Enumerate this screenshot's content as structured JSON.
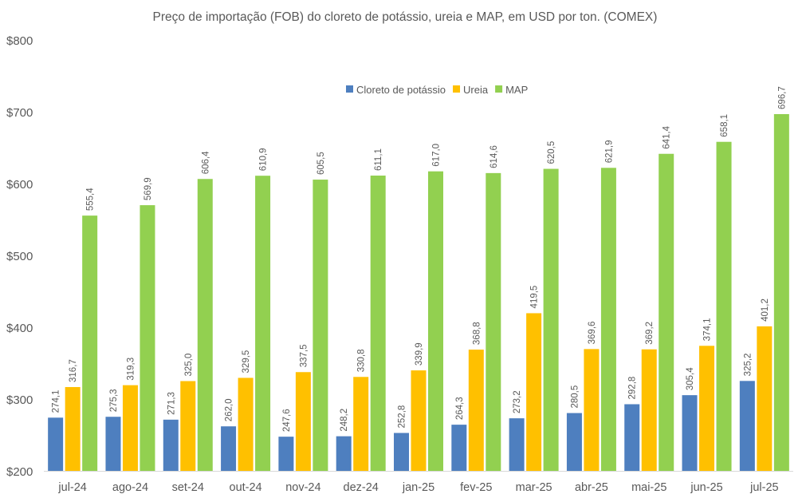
{
  "chart_data": {
    "type": "bar",
    "title": "Preço de importação (FOB) do cloreto de potássio, ureia e MAP, em USD por ton. (COMEX)",
    "xlabel": "",
    "ylabel": "",
    "ylim": [
      200,
      800
    ],
    "yticks": [
      200,
      300,
      400,
      500,
      600,
      700,
      800
    ],
    "ytick_labels": [
      "$200",
      "$300",
      "$400",
      "$500",
      "$600",
      "$700",
      "$800"
    ],
    "grid": false,
    "legend_position": "top-center",
    "categories": [
      "jul-24",
      "ago-24",
      "set-24",
      "out-24",
      "nov-24",
      "dez-24",
      "jan-25",
      "fev-25",
      "mar-25",
      "abr-25",
      "mai-25",
      "jun-25",
      "jul-25"
    ],
    "series": [
      {
        "name": "Cloreto de potássio",
        "color": "#4e7fbf",
        "values": [
          274.1,
          275.3,
          271.3,
          262.0,
          247.6,
          248.2,
          252.8,
          264.3,
          273.2,
          280.5,
          292.8,
          305.4,
          325.2
        ],
        "labels": [
          "274,1",
          "275,3",
          "271,3",
          "262,0",
          "247,6",
          "248,2",
          "252,8",
          "264,3",
          "273,2",
          "280,5",
          "292,8",
          "305,4",
          "325,2"
        ]
      },
      {
        "name": "Ureia",
        "color": "#ffc000",
        "values": [
          316.7,
          319.3,
          325.0,
          329.5,
          337.5,
          330.8,
          339.9,
          368.8,
          419.5,
          369.6,
          369.2,
          374.1,
          401.2
        ],
        "labels": [
          "316,7",
          "319,3",
          "325,0",
          "329,5",
          "337,5",
          "330,8",
          "339,9",
          "368,8",
          "419,5",
          "369,6",
          "369,2",
          "374,1",
          "401,2"
        ]
      },
      {
        "name": "MAP",
        "color": "#92d050",
        "values": [
          555.4,
          569.9,
          606.4,
          610.9,
          605.5,
          611.1,
          617.0,
          614.6,
          620.5,
          621.9,
          641.4,
          658.1,
          696.7
        ],
        "labels": [
          "555,4",
          "569,9",
          "606,4",
          "610,9",
          "605,5",
          "611,1",
          "617,0",
          "614,6",
          "620,5",
          "621,9",
          "641,4",
          "658,1",
          "696,7"
        ]
      }
    ]
  }
}
